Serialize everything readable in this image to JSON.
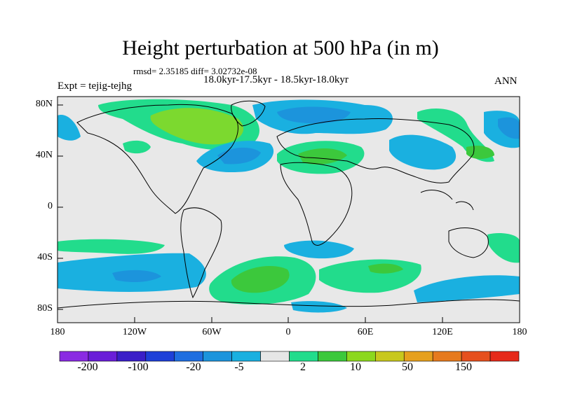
{
  "title": "Height perturbation at 500 hPa (in m)",
  "stats_line": "rmsd= 2.35185 diff= 3.02732e-08",
  "period_line": "18.0kyr-17.5kyr - 18.5kyr-18.0kyr",
  "experiment": "Expt = tejig-tejhg",
  "season": "ANN",
  "lat_labels": [
    "80N",
    "40N",
    "0",
    "40S",
    "80S"
  ],
  "lon_labels": [
    "180",
    "120W",
    "60W",
    "0",
    "60E",
    "120E",
    "180"
  ],
  "colorbar": {
    "colors": [
      "#8a2be2",
      "#6a1ed8",
      "#3a1fc8",
      "#1e40d8",
      "#1f6ee0",
      "#1c94dc",
      "#1ab0e0",
      "#e6e6e6",
      "#22dc8c",
      "#3cc83c",
      "#8cd81e",
      "#c8c81e",
      "#e6a01e",
      "#e67a1e",
      "#e6501e",
      "#e62a1a"
    ],
    "labels": [
      "-200",
      "-100",
      "-20",
      "-5",
      "2",
      "10",
      "50",
      "150"
    ]
  },
  "icons": {
    "map": "world-map-icon"
  }
}
